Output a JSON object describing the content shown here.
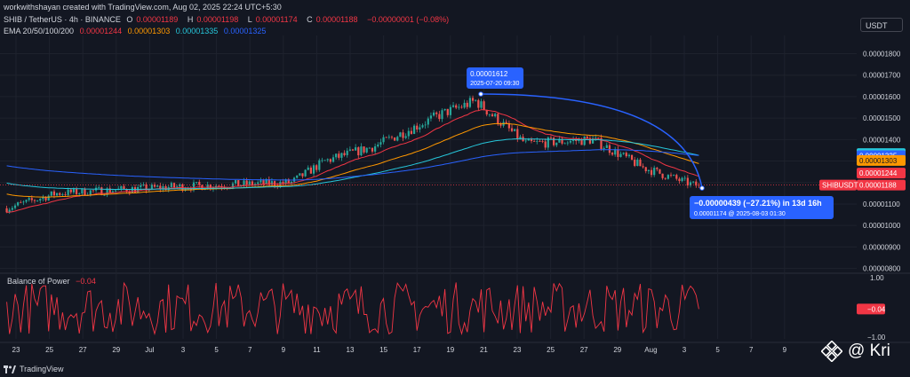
{
  "header": {
    "credit": "workwithshayan created with TradingView.com, Aug 02, 2025 22:24 UTC+5:30",
    "symbol_line": "SHIB / TetherUS · 4h · BINANCE",
    "ohlc": [
      {
        "label": "O",
        "value": "0.00001189"
      },
      {
        "label": "H",
        "value": "0.00001198"
      },
      {
        "label": "L",
        "value": "0.00001174"
      },
      {
        "label": "C",
        "value": "0.00001188"
      }
    ],
    "change": "−0.00000001 (−0.08%)",
    "ema_label": "EMA 20/50/100/200",
    "ema_values": [
      {
        "value": "0.00001244",
        "color": "#f23645"
      },
      {
        "value": "0.00001303",
        "color": "#ff9800"
      },
      {
        "value": "0.00001335",
        "color": "#26c6da"
      },
      {
        "value": "0.00001325",
        "color": "#2962ff"
      }
    ]
  },
  "currency_button": "USDT",
  "colors": {
    "up": "#26a69a",
    "down": "#ef5350",
    "background": "#131722",
    "grid": "#1e222d",
    "ema20": "#f23645",
    "ema50": "#ff9800",
    "ema100": "#26c6da",
    "ema200": "#2962ff",
    "bop": "#f23645",
    "measure": "#2962ff"
  },
  "chart_data": [
    {
      "type": "candlestick",
      "x_ticks": [
        "23",
        "25",
        "27",
        "29",
        "Jul",
        "3",
        "5",
        "7",
        "9",
        "11",
        "13",
        "15",
        "17",
        "19",
        "21",
        "23",
        "25",
        "27",
        "29",
        "Aug",
        "3",
        "5",
        "7",
        "9"
      ],
      "y_ticks": [
        "0.00001800",
        "0.00001700",
        "0.00001600",
        "0.00001500",
        "0.00001400",
        "0.00001300",
        "0.00001200",
        "0.00001100",
        "0.00001000",
        "0.00000900",
        "0.00000800"
      ],
      "ylim": [
        7.9e-06,
        1.86e-05
      ],
      "ohlc_last": {
        "open": 1.189e-05,
        "high": 1.198e-05,
        "low": 1.174e-05,
        "close": 1.188e-05
      },
      "key_points": [
        {
          "date": "2025-06-22",
          "close": 1.08e-05
        },
        {
          "date": "2025-06-25",
          "close": 1.15e-05
        },
        {
          "date": "2025-07-02",
          "close": 1.18e-05
        },
        {
          "date": "2025-07-09",
          "close": 1.2e-05
        },
        {
          "date": "2025-07-11",
          "close": 1.3e-05
        },
        {
          "date": "2025-07-14",
          "close": 1.37e-05
        },
        {
          "date": "2025-07-18",
          "close": 1.52e-05
        },
        {
          "date": "2025-07-20",
          "close": 1.58e-05
        },
        {
          "date": "2025-07-23",
          "close": 1.38e-05
        },
        {
          "date": "2025-07-27",
          "close": 1.4e-05
        },
        {
          "date": "2025-07-30",
          "close": 1.27e-05
        },
        {
          "date": "2025-08-02",
          "close": 1.188e-05
        }
      ],
      "price_labels": [
        {
          "text": "0.00001335",
          "value": 1.335e-05,
          "color": "#26c6da",
          "text_color": "#131722"
        },
        {
          "text": "0.00001325",
          "value": 1.325e-05,
          "color": "#2962ff",
          "text_color": "#ffffff"
        },
        {
          "text": "0.00001303",
          "value": 1.303e-05,
          "color": "#ff9800",
          "text_color": "#131722"
        },
        {
          "text": "0.00001244",
          "value": 1.244e-05,
          "color": "#f23645",
          "text_color": "#ffffff"
        },
        {
          "text": "0.00001188",
          "value": 1.188e-05,
          "color": "#f23645",
          "text_color": "#ffffff",
          "ticker": "SHIBUSDT"
        }
      ],
      "measure": {
        "from": {
          "value": "0.00001612",
          "date": "2025-07-20 09:30"
        },
        "to": {
          "change": "−0.00000439 (−27.21%) in 13d 16h",
          "value": "0.00001174",
          "date": "2025-08-03  01:30"
        }
      }
    },
    {
      "type": "line",
      "title": "Balance of Power",
      "current": "−0.04",
      "y_ticks": [
        "1.00",
        "−1.00"
      ],
      "ylim": [
        -1,
        1
      ]
    }
  ],
  "footer": {
    "brand": "TradingView"
  },
  "watermark": {
    "text": "@ Kri"
  }
}
